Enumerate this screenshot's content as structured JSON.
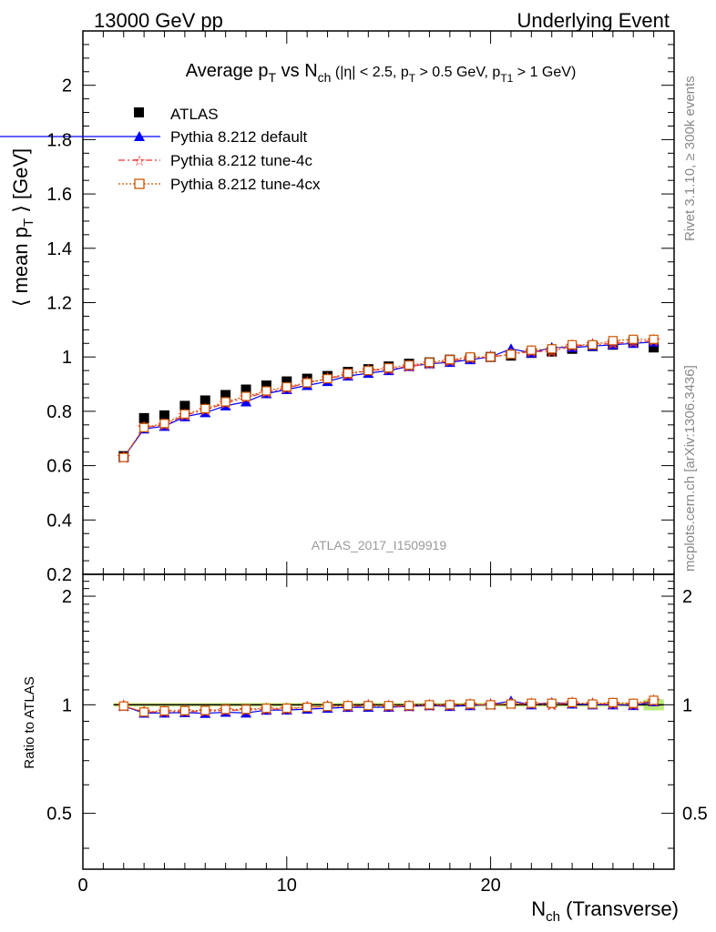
{
  "header": {
    "left": "13000 GeV pp",
    "right": "Underlying Event"
  },
  "title": {
    "main": "Average p",
    "main_sub": "T",
    "vs": " vs N",
    "vs_sub": "ch",
    "cuts_a": " (|η| < 2.5, p",
    "cuts_a_sub": "T",
    "cuts_b": " > 0.5 GeV, p",
    "cuts_b_sub": "T1",
    "cuts_c": " > 1 GeV)"
  },
  "side_text": {
    "rivet": "Rivet 3.1.10, ≥ 300k events",
    "mcplots": "mcplots.cern.ch [arXiv:1306.3436]"
  },
  "analysis_id": "ATLAS_2017_I1509919",
  "axes": {
    "ylabel_main_a": "⟨ mean p",
    "ylabel_main_sub": "T",
    "ylabel_main_b": " ⟩ [GeV]",
    "ylabel_ratio": "Ratio to ATLAS",
    "xlabel_a": "N",
    "xlabel_sub": "ch",
    "xlabel_b": " (Transverse)"
  },
  "chart_data": {
    "type": "line",
    "x": [
      2,
      3,
      4,
      5,
      6,
      7,
      8,
      9,
      10,
      11,
      12,
      13,
      14,
      15,
      16,
      17,
      18,
      19,
      20,
      21,
      22,
      23,
      24,
      25,
      26,
      27,
      28
    ],
    "xlim": [
      0,
      29
    ],
    "main_ylim": [
      0.2,
      2.2
    ],
    "main_yticks": [
      "0.2",
      "0.4",
      "0.6",
      "0.8",
      "1",
      "1.2",
      "1.4",
      "1.6",
      "1.8",
      "2"
    ],
    "ratio_ylim": [
      0.35,
      2.3
    ],
    "ratio_yticks": [
      "0.5",
      "1",
      "2"
    ],
    "xticks": [
      "0",
      "10",
      "20"
    ],
    "legend_position": "top-left",
    "series": [
      {
        "name": "ATLAS",
        "style": "marker-square",
        "color": "#000000",
        "values": [
          0.635,
          0.775,
          0.785,
          0.82,
          0.84,
          0.86,
          0.88,
          0.895,
          0.91,
          0.92,
          0.93,
          0.945,
          0.955,
          0.965,
          0.975,
          0.98,
          0.99,
          0.995,
          1.0,
          1.005,
          1.015,
          1.02,
          1.03,
          1.04,
          1.045,
          1.055,
          1.035
        ]
      },
      {
        "name": "Pythia 8.212 default",
        "style": "line-triangle",
        "color": "#0000ff",
        "values": [
          0.63,
          0.735,
          0.745,
          0.78,
          0.795,
          0.82,
          0.835,
          0.865,
          0.88,
          0.895,
          0.91,
          0.93,
          0.94,
          0.95,
          0.965,
          0.975,
          0.98,
          0.99,
          1.0,
          1.03,
          1.015,
          1.035,
          1.035,
          1.04,
          1.045,
          1.05,
          1.055
        ]
      },
      {
        "name": "Pythia 8.212 tune-4c",
        "style": "dashdot-star",
        "color": "#ee3333",
        "values": [
          0.63,
          0.74,
          0.75,
          0.785,
          0.805,
          0.83,
          0.85,
          0.87,
          0.885,
          0.905,
          0.92,
          0.935,
          0.95,
          0.955,
          0.965,
          0.975,
          0.985,
          0.995,
          1.0,
          1.01,
          1.02,
          1.02,
          1.04,
          1.045,
          1.05,
          1.055,
          1.06
        ]
      },
      {
        "name": "Pythia 8.212 tune-4cx",
        "style": "dotted-opensquare",
        "color": "#cc5500",
        "values": [
          0.63,
          0.74,
          0.755,
          0.79,
          0.81,
          0.835,
          0.855,
          0.875,
          0.89,
          0.905,
          0.92,
          0.94,
          0.95,
          0.96,
          0.97,
          0.98,
          0.99,
          1.0,
          1.0,
          1.01,
          1.025,
          1.03,
          1.045,
          1.045,
          1.06,
          1.065,
          1.065
        ]
      }
    ]
  }
}
